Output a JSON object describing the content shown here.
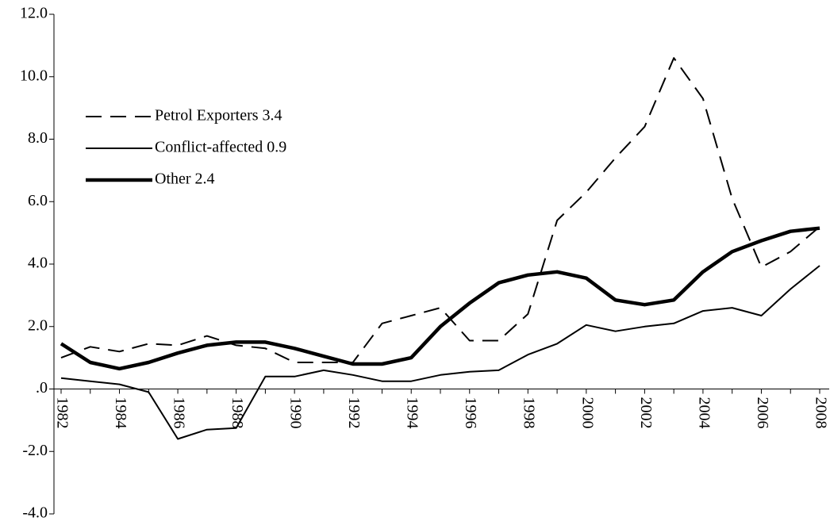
{
  "chart_data": {
    "type": "line",
    "categories": [
      "1982",
      null,
      "1984",
      null,
      "1986",
      null,
      "1988",
      null,
      "1990",
      null,
      "1992",
      null,
      "1994",
      null,
      "1996",
      null,
      "1998",
      null,
      "2000",
      null,
      "2002",
      null,
      "2004",
      null,
      "2006",
      null,
      "2008"
    ],
    "series": [
      {
        "name": "Petrol Exporters 3.4",
        "color": "#000000",
        "values": [
          1.0,
          1.35,
          1.2,
          1.45,
          1.4,
          1.7,
          1.4,
          1.3,
          0.85,
          0.85,
          0.85,
          2.1,
          2.35,
          2.6,
          1.55,
          1.55,
          2.4,
          5.4,
          6.3,
          7.4,
          8.4,
          10.6,
          9.3,
          6.1,
          3.9,
          4.4,
          5.2
        ]
      },
      {
        "name": "Conflict-affected 0.9",
        "color": "#000000",
        "values": [
          0.35,
          0.25,
          0.15,
          -0.1,
          -1.6,
          -1.3,
          -1.25,
          0.4,
          0.4,
          0.6,
          0.45,
          0.25,
          0.25,
          0.45,
          0.55,
          0.6,
          1.1,
          1.45,
          2.05,
          1.85,
          2.0,
          2.1,
          2.5,
          2.6,
          2.35,
          3.2,
          3.95
        ]
      },
      {
        "name": "Other 2.4",
        "color": "#000000",
        "values": [
          1.45,
          0.85,
          0.65,
          0.85,
          1.15,
          1.4,
          1.5,
          1.5,
          1.3,
          1.05,
          0.8,
          0.8,
          1.0,
          2.0,
          2.75,
          3.4,
          3.65,
          3.75,
          3.55,
          2.85,
          2.7,
          2.85,
          3.75,
          4.4,
          4.75,
          5.05,
          5.15
        ]
      }
    ],
    "ylim": [
      -4,
      12
    ],
    "yticks": [
      {
        "value": -4,
        "label": "-4.0"
      },
      {
        "value": -2,
        "label": "-2.0"
      },
      {
        "value": 0,
        "label": ".0"
      },
      {
        "value": 2,
        "label": "2.0"
      },
      {
        "value": 4,
        "label": "4.0"
      },
      {
        "value": 6,
        "label": "6.0"
      },
      {
        "value": 8,
        "label": "8.0"
      },
      {
        "value": 10,
        "label": "10.0"
      },
      {
        "value": 12,
        "label": "12.0"
      }
    ]
  }
}
